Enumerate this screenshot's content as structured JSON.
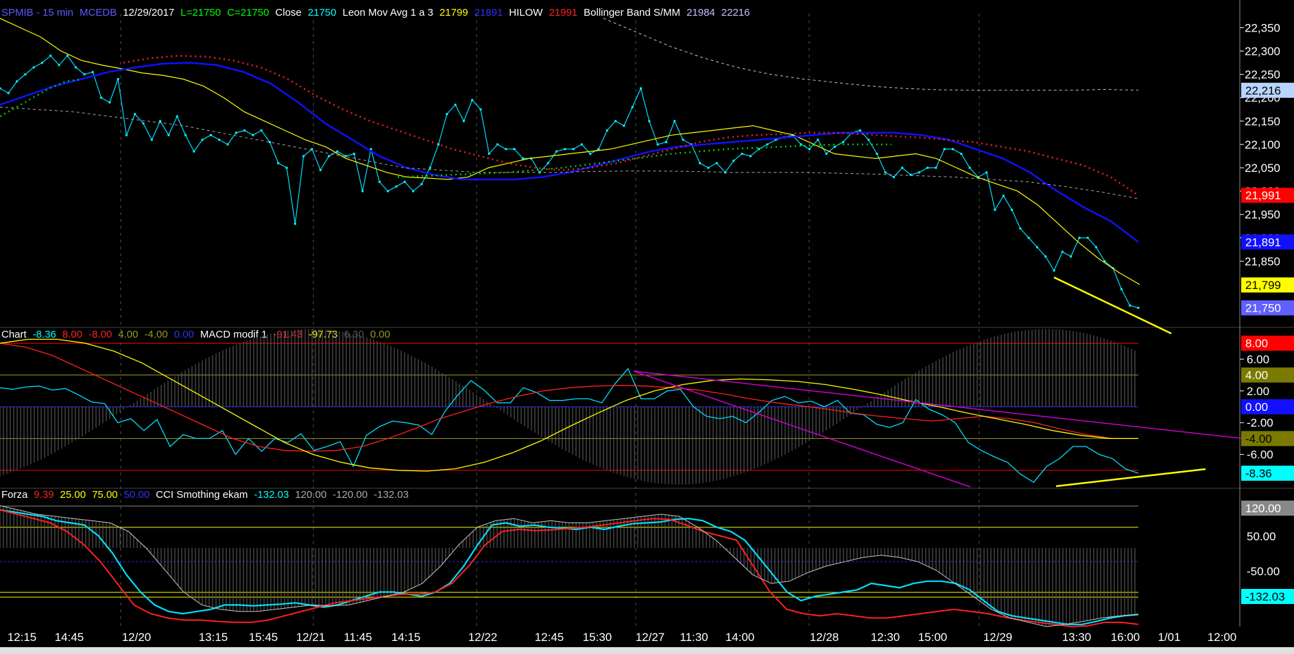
{
  "header": {
    "price": [
      {
        "text": "SPMIB - 15 min",
        "color": "#5a5aff"
      },
      {
        "text": "MCEDB",
        "color": "#5a5aff"
      },
      {
        "text": "12/29/2017",
        "color": "#ffffff"
      },
      {
        "text": "L=21750",
        "color": "#00ff00"
      },
      {
        "text": "C=21750",
        "color": "#00ff00"
      },
      {
        "text": "Close",
        "color": "#ffffff"
      },
      {
        "text": "21750",
        "color": "#00ffff"
      },
      {
        "text": "Leon Mov Avg 1 a 3",
        "color": "#ffffff"
      },
      {
        "text": "21799",
        "color": "#ffff00"
      },
      {
        "text": "21891",
        "color": "#3030ff"
      },
      {
        "text": "HILOW",
        "color": "#ffffff"
      },
      {
        "text": "21991",
        "color": "#ff2020"
      },
      {
        "text": "Bollinger Band S/MM",
        "color": "#ffffff"
      },
      {
        "text": "21984",
        "color": "#c0c0ff"
      },
      {
        "text": "22216",
        "color": "#c0c0ff"
      }
    ],
    "macd": [
      {
        "text": "Chart",
        "color": "#ffffff"
      },
      {
        "text": "-8.36",
        "color": "#00ffff"
      },
      {
        "text": "8.00",
        "color": "#ff2020"
      },
      {
        "text": "-8.00",
        "color": "#ff2020"
      },
      {
        "text": "4.00",
        "color": "#9a9a20"
      },
      {
        "text": "-4.00",
        "color": "#9a9a20"
      },
      {
        "text": "0.00",
        "color": "#3030ff"
      },
      {
        "text": "MACD modif 1",
        "color": "#ffffff"
      },
      {
        "text": "-91.43",
        "color": "#ff2020"
      },
      {
        "text": "-97.73",
        "color": "#ffff00"
      },
      {
        "text": "6.30",
        "color": "#555555"
      },
      {
        "text": "0.00",
        "color": "#9a9a20"
      }
    ],
    "cci": [
      {
        "text": "Forza",
        "color": "#ffffff"
      },
      {
        "text": "9.39",
        "color": "#ff2020"
      },
      {
        "text": "25.00",
        "color": "#ffff00"
      },
      {
        "text": "75.00",
        "color": "#ffff00"
      },
      {
        "text": "50.00",
        "color": "#3030ff"
      },
      {
        "text": "CCI Smothing ekam",
        "color": "#ffffff"
      },
      {
        "text": "-132.03",
        "color": "#00ffff"
      },
      {
        "text": "120.00",
        "color": "#aaaaaa"
      },
      {
        "text": "-120.00",
        "color": "#aaaaaa"
      },
      {
        "text": "-132.03",
        "color": "#aaaaaa"
      }
    ]
  },
  "chart_data": [
    {
      "type": "line",
      "title": "SPMIB - 15 min",
      "ylim": [
        21720,
        22380
      ],
      "yticks": [
        "22,350",
        "22,300",
        "22,250",
        "22,200",
        "22,150",
        "22,100",
        "22,050",
        "22,000",
        "21,950",
        "21,900",
        "21,850"
      ],
      "x_labels": [
        "12:15",
        "14:45",
        "12/20",
        "13:15",
        "15:45",
        "12/21",
        "11:45",
        "14:15",
        "12/22",
        "12:45",
        "15:30",
        "12/27",
        "11:30",
        "14:00",
        "12/28",
        "12:30",
        "15:00",
        "12/29",
        "13:30",
        "16:00",
        "1/01",
        "12:00"
      ],
      "value_tags": [
        {
          "text": "22,216",
          "value": 22216,
          "bg": "#b8d4ff",
          "fg": "#000000"
        },
        {
          "text": "21,991",
          "value": 21991,
          "bg": "#ff0000",
          "fg": "#ffffff"
        },
        {
          "text": "21,891",
          "value": 21891,
          "bg": "#1010ff",
          "fg": "#ffffff"
        },
        {
          "text": "21,799",
          "value": 21799,
          "bg": "#ffff00",
          "fg": "#000000"
        },
        {
          "text": "21,750",
          "value": 21750,
          "bg": "#6060ff",
          "fg": "#ffffff"
        }
      ],
      "series": [
        {
          "key": "close",
          "color": "#00e0ff",
          "values": [
            22220,
            22210,
            22235,
            22250,
            22265,
            22275,
            22290,
            22270,
            22290,
            22265,
            22250,
            22255,
            22200,
            22190,
            22240,
            22120,
            22165,
            22145,
            22110,
            22150,
            22120,
            22160,
            22120,
            22085,
            22110,
            22120,
            22110,
            22100,
            22125,
            22130,
            22120,
            22130,
            22105,
            22060,
            22050,
            21930,
            22075,
            22090,
            22045,
            22075,
            22085,
            22075,
            22080,
            22000,
            22090,
            22020,
            22000,
            22010,
            22020,
            22000,
            22015,
            22050,
            22100,
            22165,
            22185,
            22150,
            22195,
            22175,
            22080,
            22100,
            22090,
            22090,
            22070,
            22070,
            22040,
            22060,
            22085,
            22090,
            22090,
            22100,
            22080,
            22090,
            22130,
            22150,
            22140,
            22180,
            22220,
            22150,
            22100,
            22105,
            22150,
            22110,
            22100,
            22060,
            22050,
            22060,
            22040,
            22065,
            22080,
            22075,
            22090,
            22100,
            22110,
            22115,
            22120,
            22100,
            22090,
            22110,
            22080,
            22095,
            22105,
            22125,
            22130,
            22110,
            22080,
            22040,
            22030,
            22050,
            22035,
            22040,
            22050,
            22050,
            22090,
            22090,
            22080,
            22050,
            22030,
            22040,
            21960,
            21990,
            21960,
            21920,
            21900,
            21880,
            21860,
            21830,
            21870,
            21860,
            21900,
            21900,
            21880,
            21850,
            21835,
            21790,
            21755,
            21750
          ]
        },
        {
          "key": "mov_avg",
          "color": "#ffff00",
          "values": [
            22370,
            22350,
            22330,
            22300,
            22280,
            22270,
            22262,
            22253,
            22248,
            22240,
            22225,
            22200,
            22170,
            22150,
            22130,
            22110,
            22095,
            22070,
            22055,
            22040,
            22030,
            22028,
            22025,
            22030,
            22050,
            22060,
            22070,
            22075,
            22080,
            22085,
            22090,
            22100,
            22110,
            22120,
            22125,
            22130,
            22135,
            22140,
            22130,
            22120,
            22100,
            22080,
            22075,
            22070,
            22075,
            22080,
            22070,
            22050,
            22030,
            22015,
            22000,
            21970,
            21930,
            21890,
            21855,
            21825,
            21800
          ]
        },
        {
          "key": "ma_blue",
          "color": "#1010ff",
          "values": [
            22185,
            22205,
            22225,
            22240,
            22255,
            22265,
            22273,
            22275,
            22270,
            22255,
            22230,
            22190,
            22145,
            22110,
            22075,
            22050,
            22035,
            22025,
            22025,
            22025,
            22030,
            22040,
            22055,
            22070,
            22085,
            22095,
            22100,
            22105,
            22110,
            22115,
            22120,
            22125,
            22125,
            22125,
            22120,
            22110,
            22090,
            22070,
            22040,
            22000,
            21965,
            21935,
            21891
          ]
        },
        {
          "key": "hilow",
          "color": "#ff2020",
          "values": [
            22275,
            22285,
            22290,
            22288,
            22280,
            22265,
            22240,
            22205,
            22175,
            22150,
            22130,
            22110,
            22090,
            22075,
            22060,
            22050,
            22045,
            22050,
            22060,
            22075,
            22090,
            22105,
            22115,
            22120,
            22122,
            22125,
            22125,
            22122,
            22118,
            22115,
            22110,
            22105,
            22095,
            22085,
            22070,
            22055,
            22030,
            21991
          ]
        },
        {
          "key": "bb_mid",
          "color": "#aaaaaa",
          "values": [
            22180,
            22175,
            22170,
            22160,
            22150,
            22140,
            22125,
            22110,
            22095,
            22080,
            22065,
            22050,
            22045,
            22040,
            22040,
            22040,
            22042,
            22043,
            22043,
            22042,
            22040,
            22040,
            22040,
            22038,
            22036,
            22033,
            22030,
            22025,
            22020,
            22010,
            21998,
            21984
          ]
        },
        {
          "key": "bb_up",
          "color": "#c0c0ff",
          "values": [
            22370,
            22340,
            22310,
            22285,
            22265,
            22250,
            22240,
            22232,
            22225,
            22220,
            22217,
            22216,
            22216,
            22216,
            22216,
            22218,
            22216
          ]
        }
      ]
    },
    {
      "type": "line",
      "title": "MACD modif 1",
      "ylim": [
        -10,
        10
      ],
      "yticks": [
        "6.00",
        "2.00",
        "-2.00",
        "-6.00"
      ],
      "value_tags": [
        {
          "text": "8.00",
          "value": 8,
          "bg": "#ff0000",
          "fg": "#ffffff"
        },
        {
          "text": "4.00",
          "value": 4,
          "bg": "#7a7a00",
          "fg": "#ffffff"
        },
        {
          "text": "0.00",
          "value": 0,
          "bg": "#1010ff",
          "fg": "#ffffff"
        },
        {
          "text": "-4.00",
          "value": -4,
          "bg": "#7a7a00",
          "fg": "#000000"
        },
        {
          "text": "-8.36",
          "value": -8.36,
          "bg": "#00ffff",
          "fg": "#000000"
        }
      ],
      "series": [
        {
          "key": "osc",
          "color": "#00e0ff",
          "values": [
            2.4,
            2.2,
            2.5,
            2.6,
            2.1,
            2.3,
            1.5,
            0.6,
            0.4,
            -2.0,
            -1.5,
            -3.0,
            -1.6,
            -5.0,
            -3.5,
            -4.0,
            -4.0,
            -3.0,
            -6.0,
            -4.0,
            -5.6,
            -4.0,
            -4.5,
            -3.4,
            -5.5,
            -5.0,
            -4.4,
            -7.5,
            -3.6,
            -2.5,
            -1.8,
            -2.0,
            -2.3,
            -3.5,
            -0.6,
            1.5,
            3.3,
            2.1,
            0.5,
            0.5,
            2.4,
            1.8,
            0.8,
            0.8,
            1.0,
            1.0,
            0.5,
            2.9,
            4.8,
            1.0,
            1.0,
            2.0,
            2.2,
            0.0,
            -1.2,
            -1.5,
            -1.2,
            -2.0,
            -0.7,
            0.8,
            1.3,
            0.5,
            0.7,
            0.0,
            0.8,
            -0.8,
            -1.0,
            -2.2,
            -2.6,
            -2.0,
            0.9,
            -0.3,
            -1.0,
            -2.0,
            -4.5,
            -5.5,
            -6.3,
            -7.0,
            -8.5,
            -9.5,
            -7.5,
            -6.5,
            -5.0,
            -5.0,
            -6.0,
            -6.5,
            -7.8,
            -8.36
          ]
        },
        {
          "key": "signal_red",
          "color": "#ff2020",
          "values": [
            8.0,
            7.5,
            6.5,
            5.0,
            3.5,
            2.0,
            0.5,
            -1.0,
            -2.5,
            -4.0,
            -5.0,
            -5.5,
            -5.6,
            -5.5,
            -5.0,
            -4.0,
            -2.8,
            -1.5,
            -0.5,
            0.5,
            1.3,
            2.0,
            2.4,
            2.6,
            2.7,
            2.6,
            2.4,
            2.1,
            1.6,
            1.0,
            0.5,
            0.1,
            -0.3,
            -0.8,
            -1.2,
            -1.5,
            -1.8,
            -1.5,
            -1.2,
            -1.5,
            -2.0,
            -2.8,
            -3.5,
            -4.0,
            -4.0
          ]
        },
        {
          "key": "signal_yel",
          "color": "#ffff00",
          "values": [
            8.0,
            8.5,
            8.5,
            8.0,
            7.0,
            5.5,
            3.5,
            1.5,
            -0.5,
            -2.5,
            -4.5,
            -6.0,
            -7.0,
            -7.7,
            -8.0,
            -8.1,
            -7.8,
            -7.0,
            -5.8,
            -4.3,
            -2.5,
            -0.8,
            0.8,
            2.0,
            2.8,
            3.3,
            3.5,
            3.4,
            3.2,
            2.8,
            2.2,
            1.5,
            0.7,
            0.0,
            -0.8,
            -1.5,
            -2.2,
            -3.0,
            -3.6,
            -4.0,
            -4.0
          ]
        }
      ]
    },
    {
      "type": "line",
      "title": "CCI Smothing ekam",
      "ylim": [
        -160,
        160
      ],
      "yticks": [
        "50.00",
        "-50.00"
      ],
      "value_tags": [
        {
          "text": "120.00",
          "value": 120,
          "bg": "#888888",
          "fg": "#ffffff"
        },
        {
          "text": "-132.03",
          "value": -132.03,
          "bg": "#00ffff",
          "fg": "#000000"
        }
      ],
      "series": [
        {
          "key": "cci",
          "color": "#00e0ff",
          "values": [
            110,
            105,
            100,
            95,
            85,
            80,
            75,
            50,
            10,
            -40,
            -80,
            -110,
            -125,
            -130,
            -125,
            -120,
            -110,
            -110,
            -112,
            -110,
            -108,
            -105,
            -110,
            -115,
            -110,
            -100,
            -90,
            -80,
            -80,
            -85,
            -90,
            -80,
            -60,
            -20,
            30,
            75,
            80,
            72,
            75,
            70,
            68,
            65,
            70,
            65,
            72,
            78,
            80,
            82,
            88,
            90,
            85,
            70,
            60,
            40,
            0,
            -40,
            -80,
            -100,
            -90,
            -85,
            -80,
            -75,
            -60,
            -65,
            -70,
            -60,
            -55,
            -55,
            -60,
            -75,
            -100,
            -125,
            -135,
            -140,
            -145,
            -150,
            -155,
            -155,
            -148,
            -140,
            -135,
            -132
          ]
        },
        {
          "key": "forza",
          "color": "#ff2020",
          "values": [
            110,
            100,
            90,
            80,
            60,
            30,
            -10,
            -60,
            -110,
            -130,
            -140,
            -145,
            -145,
            -148,
            -150,
            -150,
            -145,
            -135,
            -125,
            -115,
            -105,
            -100,
            -95,
            -90,
            -85,
            -85,
            -80,
            -60,
            -20,
            30,
            60,
            65,
            62,
            64,
            67,
            70,
            75,
            80,
            85,
            90,
            88,
            75,
            60,
            50,
            40,
            -20,
            -80,
            -120,
            -130,
            -135,
            -130,
            -135,
            -140,
            -140,
            -135,
            -130,
            -125,
            -120,
            -125,
            -130,
            -138,
            -145,
            -150,
            -155,
            -160,
            -158,
            -150,
            -150,
            -155
          ]
        },
        {
          "key": "forza_grey",
          "color": "#c8c8c8",
          "values": [
            120,
            110,
            100,
            95,
            90,
            85,
            80,
            60,
            20,
            -30,
            -80,
            -110,
            -120,
            -125,
            -125,
            -120,
            -115,
            -110,
            -112,
            -110,
            -100,
            -90,
            -80,
            -60,
            -20,
            30,
            70,
            85,
            90,
            80,
            85,
            80,
            80,
            85,
            90,
            95,
            100,
            95,
            70,
            40,
            0,
            -40,
            -60,
            -55,
            -35,
            -20,
            -10,
            0,
            5,
            0,
            -10,
            -30,
            -60,
            -90,
            -120,
            -140,
            -150,
            -160,
            -155,
            -148,
            -140,
            -135,
            -132
          ]
        }
      ]
    }
  ]
}
